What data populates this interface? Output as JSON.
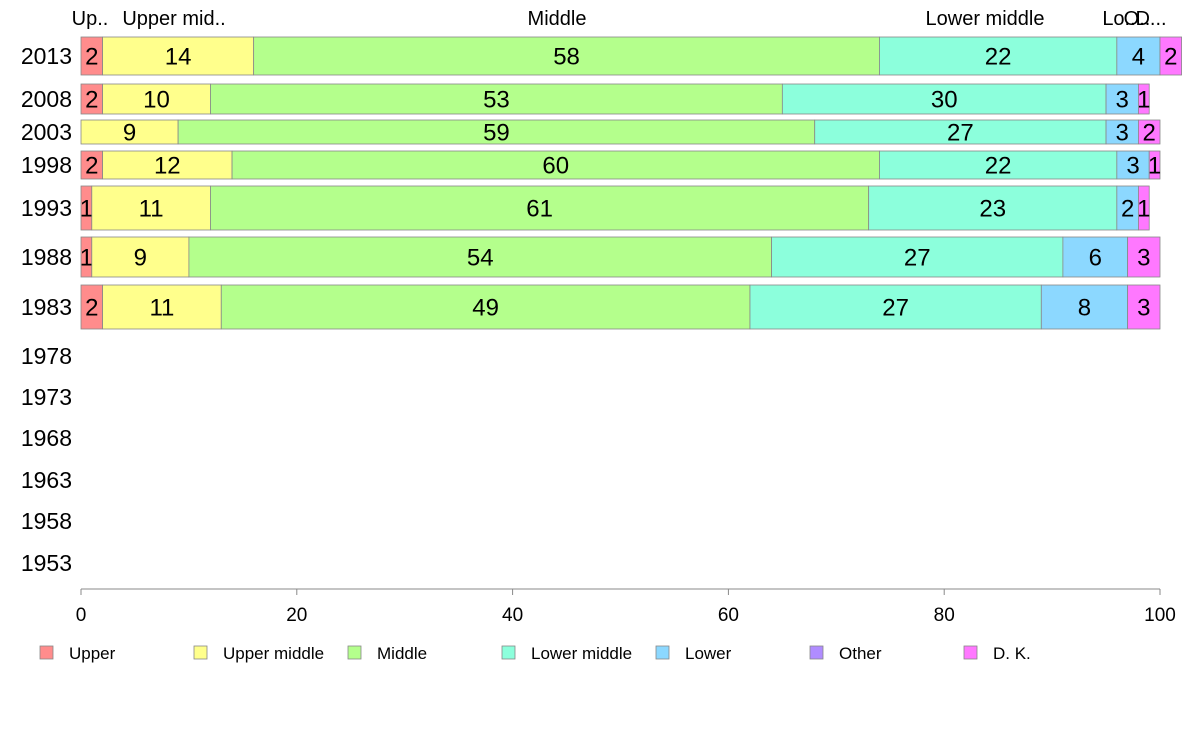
{
  "chart_data": {
    "type": "bar",
    "orientation": "horizontal",
    "stacked": true,
    "categories": [
      "2013",
      "2008",
      "2003",
      "1998",
      "1993",
      "1988",
      "1983",
      "1978",
      "1973",
      "1968",
      "1963",
      "1958",
      "1953"
    ],
    "series": [
      {
        "name": "Upper",
        "color": "#ff8c8c",
        "values": [
          2,
          2,
          null,
          2,
          1,
          1,
          2,
          null,
          null,
          null,
          null,
          null,
          null
        ]
      },
      {
        "name": "Upper middle",
        "color": "#ffff8c",
        "values": [
          14,
          10,
          9,
          12,
          11,
          9,
          11,
          null,
          null,
          null,
          null,
          null,
          null
        ]
      },
      {
        "name": "Middle",
        "color": "#b4ff8c",
        "values": [
          58,
          53,
          59,
          60,
          61,
          54,
          49,
          null,
          null,
          null,
          null,
          null,
          null
        ]
      },
      {
        "name": "Lower middle",
        "color": "#8cffdc",
        "values": [
          22,
          30,
          27,
          22,
          23,
          27,
          27,
          null,
          null,
          null,
          null,
          null,
          null
        ]
      },
      {
        "name": "Lower",
        "color": "#8cd8ff",
        "values": [
          4,
          3,
          3,
          3,
          2,
          6,
          8,
          null,
          null,
          null,
          null,
          null,
          null
        ]
      },
      {
        "name": "Other",
        "color": "#b08cff",
        "values": [
          null,
          null,
          null,
          null,
          null,
          null,
          null,
          null,
          null,
          null,
          null,
          null,
          null
        ]
      },
      {
        "name": "D. K.",
        "color": "#ff78ff",
        "values": [
          2,
          1,
          2,
          1,
          1,
          3,
          3,
          null,
          null,
          null,
          null,
          null,
          null
        ]
      }
    ],
    "column_headers": [
      "Up..",
      "Upper mid..",
      "Middle",
      "Lower middle",
      "Lo..",
      "O..",
      "D..."
    ],
    "xlim": [
      0,
      100
    ],
    "xticks": [
      "0",
      "20",
      "40",
      "60",
      "80",
      "100"
    ],
    "legend_position": "bottom",
    "grid": false,
    "title": "",
    "xlabel": "",
    "ylabel": ""
  }
}
